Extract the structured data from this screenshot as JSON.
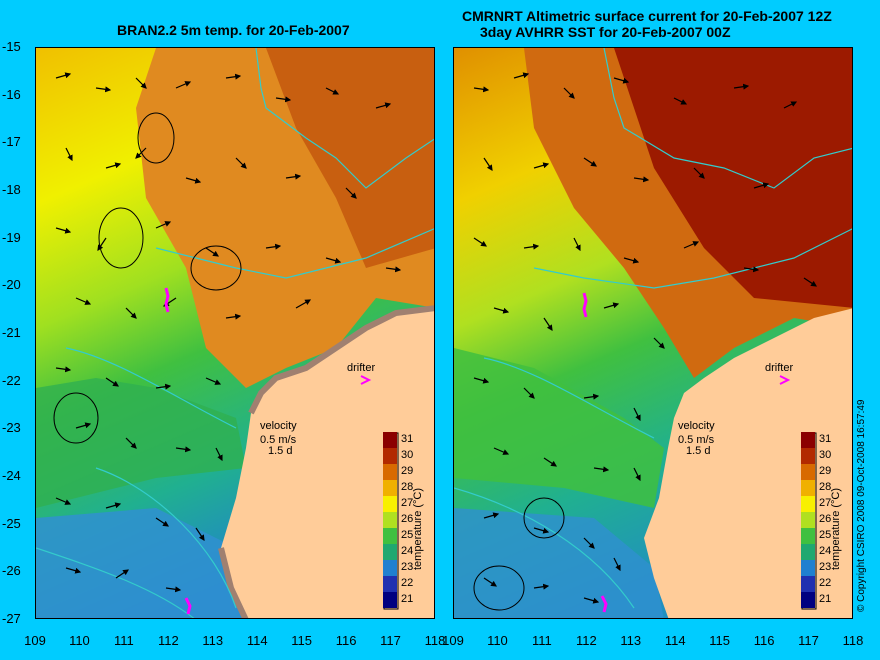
{
  "titles": {
    "left": "BRAN2.2 5m temp. for 20-Feb-2007",
    "right_line1": "CMRNRT Altimetric surface current for 20-Feb-2007 12Z",
    "right_line2": "3day AVHRR SST for 20-Feb-2007 00Z"
  },
  "axes": {
    "lat_labels": [
      "-15",
      "-16",
      "-17",
      "-18",
      "-19",
      "-20",
      "-21",
      "-22",
      "-23",
      "-24",
      "-25",
      "-26",
      "-27"
    ],
    "lon_labels": [
      "109",
      "110",
      "111",
      "112",
      "113",
      "114",
      "115",
      "116",
      "117",
      "118"
    ],
    "lon_range": [
      109,
      118
    ],
    "lat_range": [
      -27,
      -15
    ]
  },
  "annotations": {
    "drifter": "drifter",
    "velocity": "velocity",
    "velocity_scale": "0.5 m/s",
    "velocity_days": "1.5 d",
    "temperature_label": "temperature (°C)"
  },
  "colorbar": {
    "ticks": [
      "31",
      "30",
      "29",
      "28",
      "27",
      "26",
      "25",
      "24",
      "23",
      "22",
      "21"
    ],
    "colors": [
      "#8b0000",
      "#b22a00",
      "#d86a00",
      "#f0b000",
      "#f8f000",
      "#b0e020",
      "#40c040",
      "#20a870",
      "#2080d0",
      "#2030b0",
      "#000080"
    ]
  },
  "copyright": "© Copyright CSIRO 2008   09-Oct-2008 16:57:49",
  "colors": {
    "background": "#00ccff",
    "land": "#ffcc99",
    "coast": "#33cccc",
    "drifter": "#ff00ff"
  }
}
